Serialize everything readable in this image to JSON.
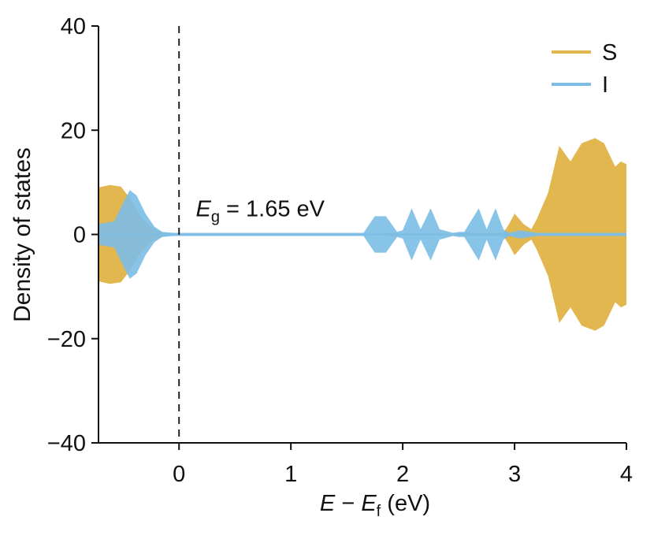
{
  "chart_data": {
    "type": "area",
    "xlabel": {
      "italic1": "E",
      "dash": " − ",
      "italic2": "E",
      "sub": "f",
      "unit": " (eV)"
    },
    "ylabel": "Density of states",
    "xlim": [
      -0.72,
      4.0
    ],
    "ylim": [
      -40,
      40
    ],
    "xticks": [
      "0",
      "1",
      "2",
      "3",
      "4"
    ],
    "yticks": [
      "−40",
      "−20",
      "0",
      "20",
      "40"
    ],
    "xtick_values": [
      0,
      1,
      2,
      3,
      4
    ],
    "ytick_values": [
      -40,
      -20,
      0,
      20,
      40
    ],
    "fermi_line_x": 0,
    "annotation": {
      "symbol": "E",
      "sub": "g",
      "text": " = 1.65 eV",
      "x": 0.15,
      "y": 3.5
    },
    "legend_position": "top-right",
    "series": [
      {
        "name": "S",
        "color": "#e3b74f",
        "x": [
          -0.72,
          -0.62,
          -0.52,
          -0.44,
          -0.36,
          -0.28,
          -0.2,
          -0.12,
          -0.05,
          1.7,
          1.9,
          2.05,
          2.45,
          2.6,
          2.9,
          2.95,
          3.0,
          3.08,
          3.15,
          3.2,
          3.3,
          3.4,
          3.5,
          3.6,
          3.72,
          3.8,
          3.9,
          3.95,
          4.0
        ],
        "y": [
          9,
          9.5,
          9.2,
          7,
          4,
          2,
          0.8,
          0.3,
          0,
          0,
          0.3,
          0.2,
          0.2,
          0.3,
          0.3,
          2,
          4,
          2,
          1,
          3,
          8,
          17,
          14,
          17.5,
          18.5,
          17.5,
          13,
          14,
          13.5
        ]
      },
      {
        "name": "I",
        "color": "#7bbde6",
        "x": [
          -0.72,
          -0.58,
          -0.5,
          -0.44,
          -0.38,
          -0.3,
          -0.22,
          -0.15,
          -0.05,
          1.65,
          1.75,
          1.85,
          1.95,
          2.0,
          2.08,
          2.16,
          2.25,
          2.33,
          2.45,
          2.5,
          2.55,
          2.68,
          2.75,
          2.83,
          2.9,
          2.95,
          3.05,
          3.2,
          4.0
        ],
        "y": [
          2,
          2.5,
          6,
          8.5,
          7.5,
          4,
          1.5,
          0.5,
          0.3,
          0.3,
          3.5,
          3.5,
          0.5,
          0.8,
          5,
          1,
          5,
          1,
          0.3,
          0.5,
          0.5,
          5,
          1,
          5,
          1,
          0.3,
          0.8,
          0.3,
          0.3
        ]
      }
    ]
  }
}
